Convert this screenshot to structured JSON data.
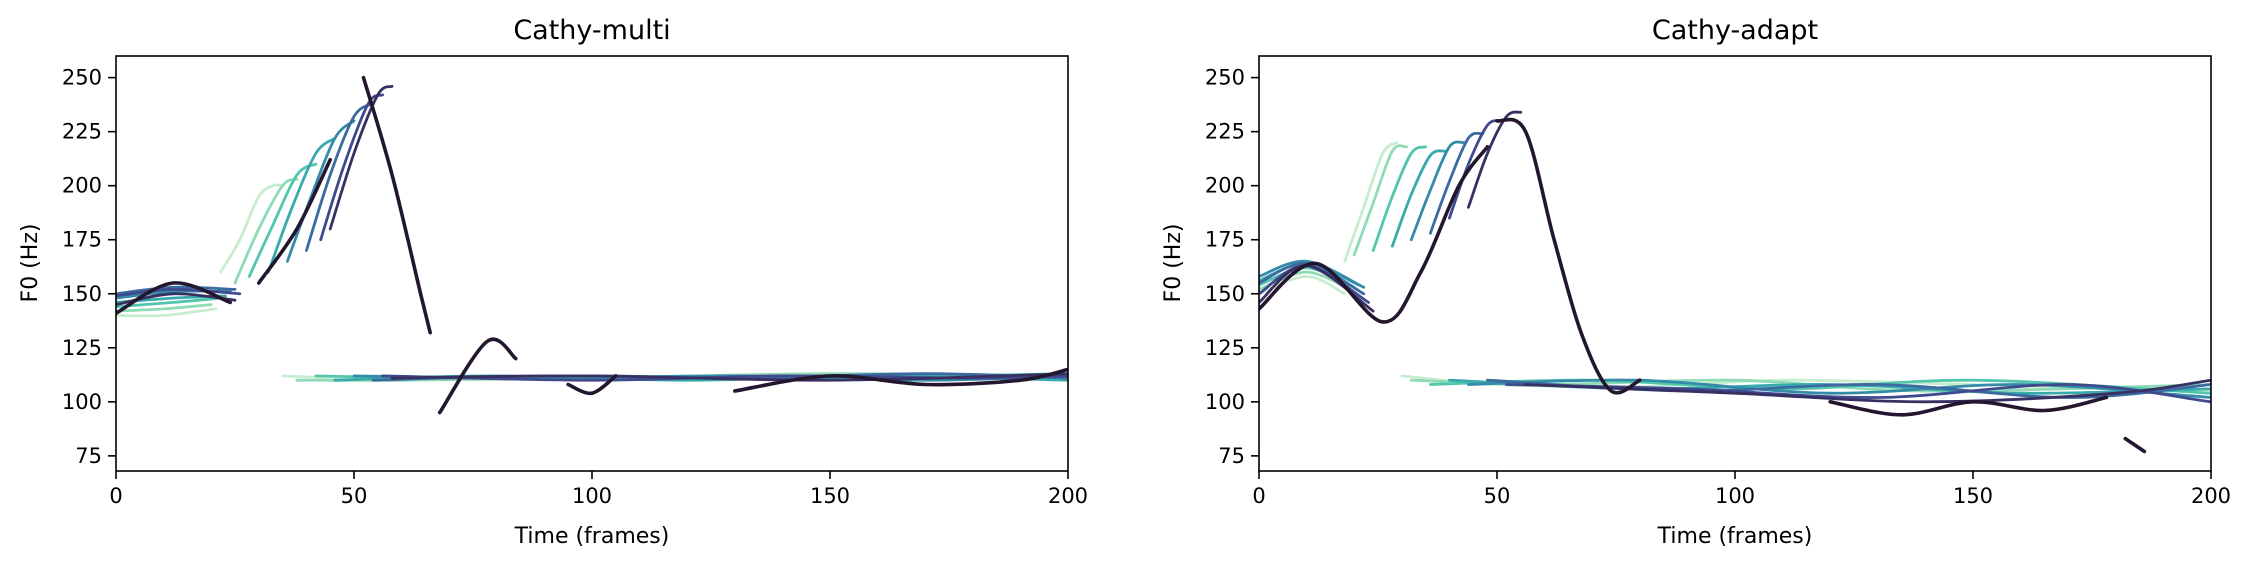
{
  "chart_data": [
    {
      "type": "line",
      "title": "Cathy-multi",
      "xlabel": "Time (frames)",
      "ylabel": "F0 (Hz)",
      "xlim": [
        0,
        200
      ],
      "ylim": [
        68,
        260
      ],
      "xticks": [
        0,
        50,
        100,
        150,
        200
      ],
      "yticks": [
        75,
        100,
        125,
        150,
        175,
        200,
        225,
        250
      ],
      "grid": false,
      "colormap": [
        "#c6edcf",
        "#8fdbb5",
        "#52c6ad",
        "#38aaac",
        "#348ba8",
        "#3b6aa0",
        "#40498e",
        "#382f62",
        "#24162e"
      ],
      "series": [
        {
          "segments": [
            {
              "x": [
                0,
                10,
                21
              ],
              "y": [
                140,
                140,
                143
              ]
            },
            {
              "x": [
                22,
                26,
                30,
                33,
                35
              ],
              "y": [
                160,
                175,
                195,
                200,
                200
              ]
            },
            {
              "x": [
                35,
                50,
                80,
                100,
                150,
                200
              ],
              "y": [
                112,
                111,
                112,
                110,
                112,
                110
              ]
            }
          ]
        },
        {
          "segments": [
            {
              "x": [
                0,
                10,
                20
              ],
              "y": [
                142,
                143,
                145
              ]
            },
            {
              "x": [
                25,
                30,
                35,
                38
              ],
              "y": [
                155,
                180,
                200,
                203
              ]
            },
            {
              "x": [
                38,
                60,
                100,
                150,
                200
              ],
              "y": [
                110,
                110,
                111,
                113,
                112
              ]
            }
          ]
        },
        {
          "segments": [
            {
              "x": [
                0,
                12,
                22
              ],
              "y": [
                144,
                146,
                148
              ]
            },
            {
              "x": [
                28,
                33,
                38,
                42
              ],
              "y": [
                158,
                182,
                205,
                210
              ]
            },
            {
              "x": [
                42,
                70,
                100,
                140,
                200
              ],
              "y": [
                112,
                111,
                112,
                111,
                113
              ]
            }
          ]
        },
        {
          "segments": [
            {
              "x": [
                0,
                12,
                23
              ],
              "y": [
                146,
                148,
                149
              ]
            },
            {
              "x": [
                32,
                37,
                42,
                46
              ],
              "y": [
                160,
                190,
                215,
                222
              ]
            },
            {
              "x": [
                46,
                80,
                120,
                160,
                200
              ],
              "y": [
                110,
                112,
                110,
                112,
                110
              ]
            }
          ]
        },
        {
          "segments": [
            {
              "x": [
                0,
                12,
                24
              ],
              "y": [
                148,
                151,
                151
              ]
            },
            {
              "x": [
                36,
                41,
                46,
                50
              ],
              "y": [
                165,
                195,
                222,
                230
              ]
            },
            {
              "x": [
                50,
                90,
                130,
                170,
                200
              ],
              "y": [
                112,
                111,
                112,
                110,
                112
              ]
            }
          ]
        },
        {
          "segments": [
            {
              "x": [
                0,
                12,
                25
              ],
              "y": [
                150,
                153,
                152
              ]
            },
            {
              "x": [
                40,
                45,
                50,
                54
              ],
              "y": [
                170,
                205,
                232,
                238
              ]
            },
            {
              "x": [
                54,
                90,
                130,
                170,
                200
              ],
              "y": [
                110,
                112,
                111,
                113,
                111
              ]
            }
          ]
        },
        {
          "segments": [
            {
              "x": [
                0,
                12,
                26
              ],
              "y": [
                149,
                152,
                150
              ]
            },
            {
              "x": [
                43,
                48,
                53,
                56
              ],
              "y": [
                175,
                210,
                238,
                242
              ]
            },
            {
              "x": [
                56,
                100,
                140,
                180,
                200
              ],
              "y": [
                112,
                110,
                112,
                111,
                112
              ]
            }
          ]
        },
        {
          "segments": [
            {
              "x": [
                0,
                12,
                25
              ],
              "y": [
                145,
                150,
                147
              ]
            },
            {
              "x": [
                45,
                50,
                55,
                58
              ],
              "y": [
                180,
                215,
                242,
                246
              ]
            },
            {
              "x": [
                58,
                100,
                150,
                200
              ],
              "y": [
                111,
                112,
                110,
                113
              ]
            }
          ]
        },
        {
          "segments": [
            {
              "x": [
                0,
                12,
                24
              ],
              "y": [
                141,
                155,
                146
              ]
            },
            {
              "x": [
                30,
                38,
                45
              ],
              "y": [
                155,
                180,
                212
              ]
            },
            {
              "x": [
                52,
                58,
                64,
                66
              ],
              "y": [
                250,
                205,
                150,
                132
              ]
            },
            {
              "x": [
                68,
                78,
                84
              ],
              "y": [
                95,
                128,
                120
              ]
            },
            {
              "x": [
                95,
                100,
                105
              ],
              "y": [
                108,
                104,
                112
              ]
            },
            {
              "x": [
                130,
                150,
                170,
                190,
                200
              ],
              "y": [
                105,
                112,
                108,
                110,
                115
              ]
            }
          ]
        }
      ]
    },
    {
      "type": "line",
      "title": "Cathy-adapt",
      "xlabel": "Time (frames)",
      "ylabel": "F0 (Hz)",
      "xlim": [
        0,
        200
      ],
      "ylim": [
        68,
        260
      ],
      "xticks": [
        0,
        50,
        100,
        150,
        200
      ],
      "yticks": [
        75,
        100,
        125,
        150,
        175,
        200,
        225,
        250
      ],
      "grid": false,
      "colormap": [
        "#c6edcf",
        "#8fdbb5",
        "#52c6ad",
        "#38aaac",
        "#348ba8",
        "#3b6aa0",
        "#40498e",
        "#382f62",
        "#24162e"
      ],
      "series": [
        {
          "segments": [
            {
              "x": [
                0,
                10,
                18
              ],
              "y": [
                150,
                158,
                150
              ]
            },
            {
              "x": [
                18,
                22,
                26,
                29
              ],
              "y": [
                165,
                190,
                215,
                220
              ]
            },
            {
              "x": [
                30,
                50,
                80,
                110,
                150,
                200
              ],
              "y": [
                112,
                108,
                107,
                110,
                108,
                105
              ]
            }
          ]
        },
        {
          "segments": [
            {
              "x": [
                0,
                10,
                19
              ],
              "y": [
                152,
                160,
                152
              ]
            },
            {
              "x": [
                20,
                24,
                28,
                31
              ],
              "y": [
                168,
                192,
                216,
                218
              ]
            },
            {
              "x": [
                32,
                60,
                100,
                140,
                200
              ],
              "y": [
                110,
                108,
                110,
                105,
                108
              ]
            }
          ]
        },
        {
          "segments": [
            {
              "x": [
                0,
                10,
                20
              ],
              "y": [
                154,
                162,
                153
              ]
            },
            {
              "x": [
                24,
                28,
                32,
                35
              ],
              "y": [
                170,
                195,
                215,
                218
              ]
            },
            {
              "x": [
                36,
                70,
                110,
                150,
                200
              ],
              "y": [
                108,
                110,
                106,
                110,
                104
              ]
            }
          ]
        },
        {
          "segments": [
            {
              "x": [
                0,
                10,
                21
              ],
              "y": [
                156,
                164,
                154
              ]
            },
            {
              "x": [
                28,
                32,
                36,
                39
              ],
              "y": [
                172,
                196,
                214,
                216
              ]
            },
            {
              "x": [
                40,
                80,
                120,
                160,
                200
              ],
              "y": [
                110,
                106,
                108,
                104,
                106
              ]
            }
          ]
        },
        {
          "segments": [
            {
              "x": [
                0,
                10,
                22
              ],
              "y": [
                158,
                165,
                153
              ]
            },
            {
              "x": [
                32,
                36,
                40,
                43
              ],
              "y": [
                175,
                198,
                218,
                220
              ]
            },
            {
              "x": [
                44,
                80,
                120,
                160,
                200
              ],
              "y": [
                108,
                110,
                104,
                108,
                102
              ]
            }
          ]
        },
        {
          "segments": [
            {
              "x": [
                0,
                10,
                22
              ],
              "y": [
                155,
                164,
                150
              ]
            },
            {
              "x": [
                36,
                40,
                44,
                47
              ],
              "y": [
                178,
                202,
                222,
                224
              ]
            },
            {
              "x": [
                48,
                90,
                130,
                170,
                200
              ],
              "y": [
                110,
                105,
                108,
                102,
                108
              ]
            }
          ]
        },
        {
          "segments": [
            {
              "x": [
                0,
                10,
                23
              ],
              "y": [
                150,
                163,
                146
              ]
            },
            {
              "x": [
                40,
                44,
                48,
                51
              ],
              "y": [
                185,
                210,
                228,
                230
              ]
            },
            {
              "x": [
                52,
                90,
                130,
                170,
                200
              ],
              "y": [
                108,
                106,
                102,
                108,
                100
              ]
            }
          ]
        },
        {
          "segments": [
            {
              "x": [
                0,
                10,
                24
              ],
              "y": [
                146,
                163,
                142
              ]
            },
            {
              "x": [
                44,
                48,
                52,
                55
              ],
              "y": [
                190,
                215,
                232,
                234
              ]
            },
            {
              "x": [
                56,
                100,
                140,
                180,
                200
              ],
              "y": [
                108,
                104,
                100,
                104,
                110
              ]
            }
          ]
        },
        {
          "segments": [
            {
              "x": [
                0,
                12,
                26,
                34,
                42,
                48
              ],
              "y": [
                143,
                164,
                137,
                160,
                200,
                218
              ]
            },
            {
              "x": [
                50,
                56,
                62,
                68,
                74,
                80
              ],
              "y": [
                230,
                225,
                175,
                130,
                105,
                110
              ]
            },
            {
              "x": [
                120,
                135,
                150,
                165,
                178
              ],
              "y": [
                100,
                94,
                100,
                96,
                102
              ]
            },
            {
              "x": [
                182,
                186
              ],
              "y": [
                83,
                77
              ]
            }
          ]
        }
      ]
    }
  ]
}
